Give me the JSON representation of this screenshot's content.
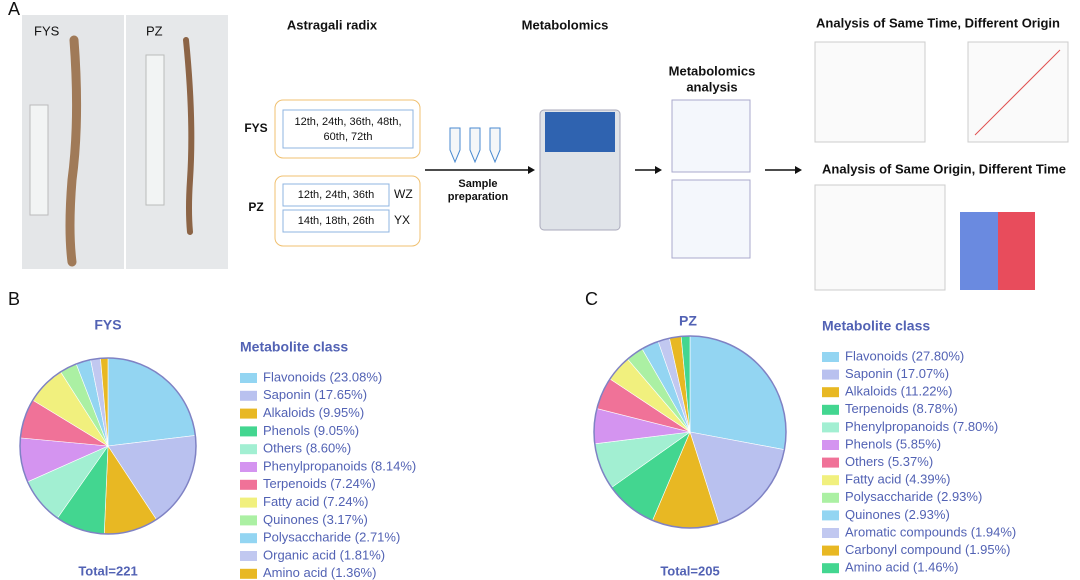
{
  "panel_a": {
    "label": "A",
    "photos": [
      "FYS",
      "PZ"
    ],
    "sample_title": "Astragali radix",
    "groups": [
      {
        "name": "FYS",
        "rows": [
          {
            "lines": [
              "12th, 24th, 36th, 48th,",
              "60th, 72th"
            ]
          }
        ]
      },
      {
        "name": "PZ",
        "rows": [
          {
            "lines": [
              "12th, 24th, 36th"
            ],
            "tag": "WZ"
          },
          {
            "lines": [
              "14th, 18th, 26th"
            ],
            "tag": "YX"
          }
        ]
      }
    ],
    "sample_prep": [
      "Sample",
      "preparation"
    ],
    "instrument": "Metabolomics",
    "analysis": [
      "Metabolomics",
      "analysis"
    ],
    "result_1": "Analysis of Same Time, Different Origin",
    "result_2": "Analysis of Same Origin, Different Time"
  },
  "chart_data": [
    {
      "type": "pie",
      "panel": "B",
      "title": "FYS",
      "legend_title": "Metabolite class",
      "total": "Total=221",
      "categories": [
        "Flavonoids (23.08%)",
        "Saponin (17.65%)",
        "Alkaloids (9.95%)",
        "Phenols (9.05%)",
        "Others (8.60%)",
        "Phenylpropanoids (8.14%)",
        "Terpenoids (7.24%)",
        "Fatty acid (7.24%)",
        "Quinones (3.17%)",
        "Polysaccharide (2.71%)",
        "Organic acid (1.81%)",
        "Amino acid (1.36%)"
      ],
      "values": [
        23.08,
        17.65,
        9.95,
        9.05,
        8.6,
        8.14,
        7.24,
        7.24,
        3.17,
        2.71,
        1.81,
        1.36
      ],
      "colors": [
        "#93d5f2",
        "#b9c1ef",
        "#e8b823",
        "#43d690",
        "#a2efd2",
        "#d494f0",
        "#f07298",
        "#f1f07e",
        "#abf0a3",
        "#93d5f2",
        "#c1c8f0",
        "#e8b823"
      ]
    },
    {
      "type": "pie",
      "panel": "C",
      "title": "PZ",
      "legend_title": "Metabolite class",
      "total": "Total=205",
      "categories": [
        "Flavonoids (27.80%)",
        "Saponin (17.07%)",
        "Alkaloids (11.22%)",
        "Terpenoids (8.78%)",
        "Phenylpropanoids (7.80%)",
        "Phenols (5.85%)",
        "Others (5.37%)",
        "Fatty acid (4.39%)",
        "Polysaccharide (2.93%)",
        "Quinones (2.93%)",
        "Aromatic compounds (1.94%)",
        "Carbonyl compound (1.95%)",
        "Amino acid (1.46%)"
      ],
      "values": [
        27.8,
        17.07,
        11.22,
        8.78,
        7.8,
        5.85,
        5.37,
        4.39,
        2.93,
        2.93,
        1.94,
        1.95,
        1.46
      ],
      "colors": [
        "#93d5f2",
        "#b9c1ef",
        "#e8b823",
        "#43d690",
        "#a2efd2",
        "#d494f0",
        "#f07298",
        "#f1f07e",
        "#abf0a3",
        "#93d5f2",
        "#c1c8f0",
        "#e8b823",
        "#43d690"
      ]
    }
  ]
}
